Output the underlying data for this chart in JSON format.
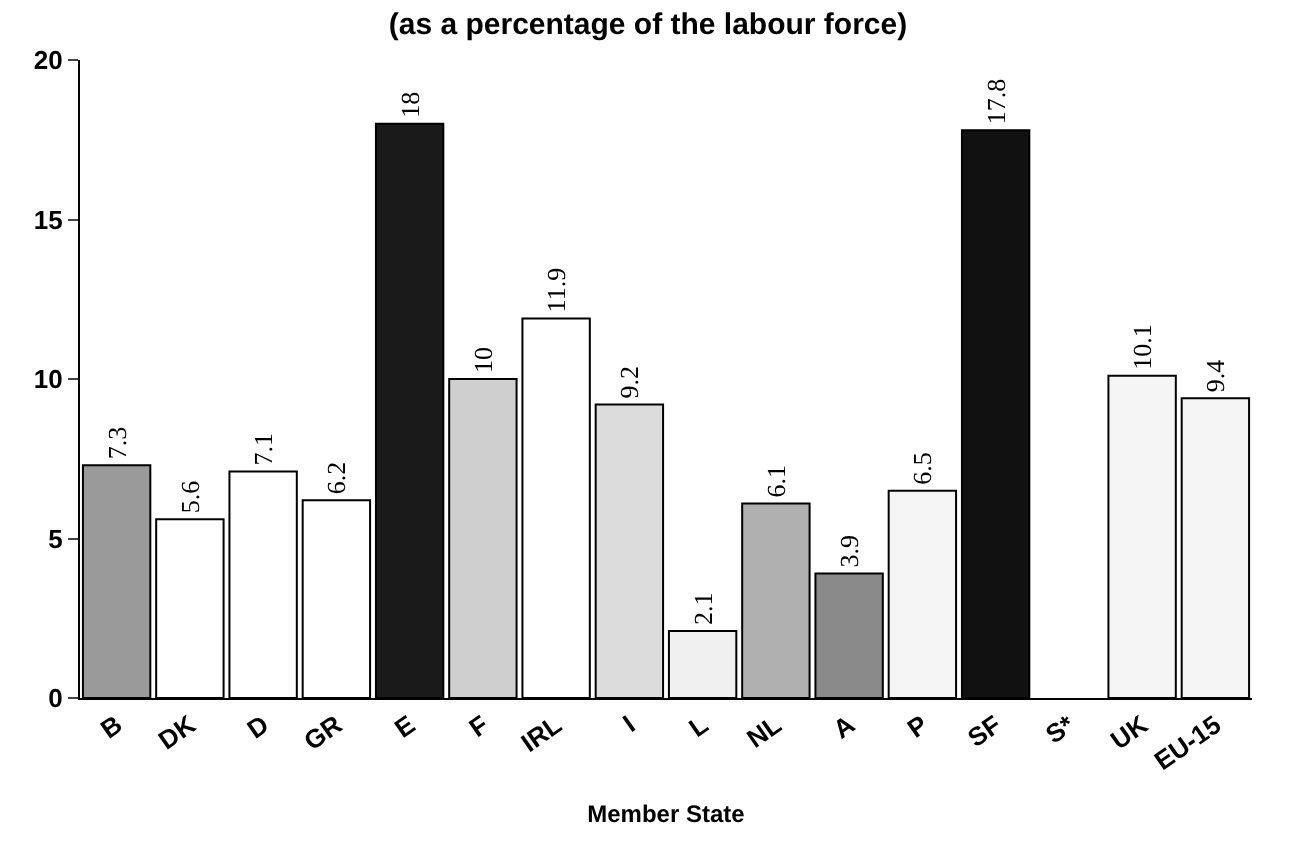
{
  "chart_data": {
    "type": "bar",
    "title": "(as a percentage of the labour force)",
    "xlabel": "Member State",
    "categories": [
      "B",
      "DK",
      "D",
      "GR",
      "E",
      "F",
      "IRL",
      "I",
      "L",
      "NL",
      "A",
      "P",
      "SF",
      "S*",
      "UK",
      "EU-15"
    ],
    "values": [
      7.3,
      5.6,
      7.1,
      6.2,
      18,
      10,
      11.9,
      9.2,
      2.1,
      6.1,
      3.9,
      6.5,
      17.8,
      null,
      10.1,
      9.4
    ],
    "colors": [
      "#9a9a9a",
      "#ffffff",
      "#ffffff",
      "#ffffff",
      "#1a1a1a",
      "#cfcfcf",
      "#ffffff",
      "#dcdcdc",
      "#f0f0f0",
      "#b0b0b0",
      "#8a8a8a",
      "#f5f5f5",
      "#111111",
      "#ffffff",
      "#f5f5f5",
      "#f5f5f5"
    ],
    "ylim": [
      0,
      20
    ],
    "yticks": [
      0,
      5,
      10,
      15,
      20
    ],
    "data_labels": true
  }
}
